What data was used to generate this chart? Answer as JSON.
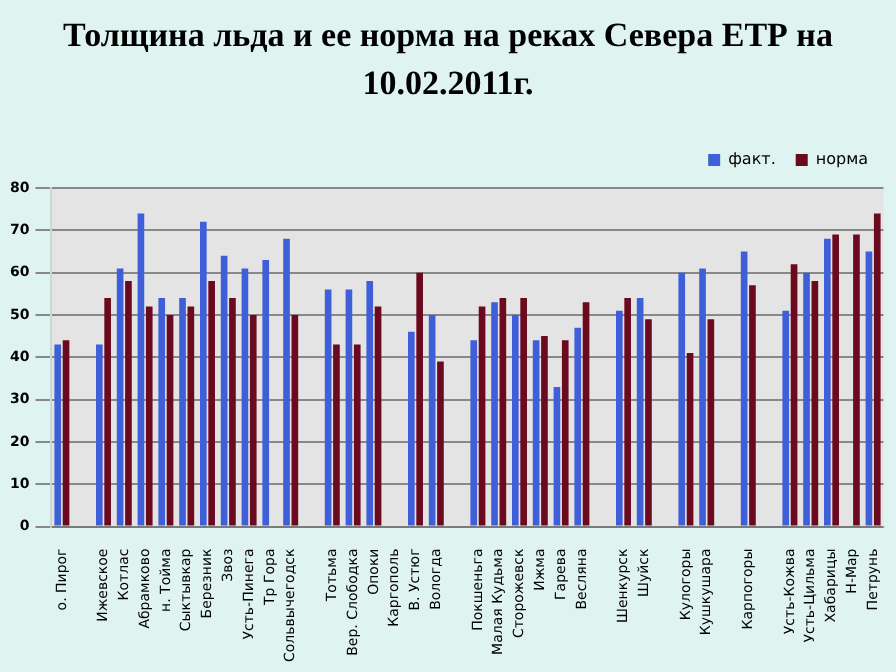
{
  "chart_data": {
    "type": "bar",
    "title": "Толщина льда и ее норма на реках Севера ЕТР на 10.02.2011г.",
    "categories": [
      "о. Пирог",
      null,
      "Ижевское",
      "Котлас",
      "Абрамково",
      "н. Тойма",
      "Сыктывкар",
      "Березник",
      "Звоз",
      "Усть-Пинега",
      "Тр Гора",
      "Сольвычегодск",
      null,
      "Тотьма",
      "Вер. Слободка",
      "Опоки",
      "Каргополь",
      "В. Устюг",
      "Вологда",
      null,
      "Покшеньга",
      "Малая Кудьма",
      "Сторожевск",
      "Ижма",
      "Гарева",
      "Весляна",
      null,
      "Шенкурск",
      "Шуйск",
      null,
      "Кулогоры",
      "Кушкушара",
      null,
      "Карпогоры",
      null,
      "Усть-Кожва",
      "Усть-Цильма",
      "Хабарицы",
      "Н-Мар",
      "Петрунь"
    ],
    "series": [
      {
        "name": "факт.",
        "color": "#3f5fd8",
        "values": [
          43,
          null,
          43,
          61,
          74,
          54,
          54,
          72,
          64,
          61,
          63,
          68,
          null,
          56,
          56,
          58,
          null,
          46,
          50,
          null,
          44,
          53,
          50,
          44,
          33,
          47,
          null,
          51,
          54,
          null,
          60,
          61,
          null,
          65,
          null,
          51,
          60,
          68,
          null,
          65
        ]
      },
      {
        "name": "норма",
        "color": "#6b0a1e",
        "values": [
          44,
          null,
          54,
          58,
          52,
          50,
          52,
          58,
          54,
          50,
          null,
          50,
          null,
          43,
          43,
          52,
          null,
          60,
          39,
          null,
          52,
          54,
          54,
          45,
          44,
          53,
          null,
          54,
          49,
          null,
          41,
          49,
          null,
          57,
          null,
          62,
          58,
          69,
          69,
          74
        ]
      }
    ],
    "ylim": [
      0,
      80
    ],
    "yticks": [
      0,
      10,
      20,
      30,
      40,
      50,
      60,
      70,
      80
    ],
    "grid": "y",
    "legend": "top right"
  }
}
